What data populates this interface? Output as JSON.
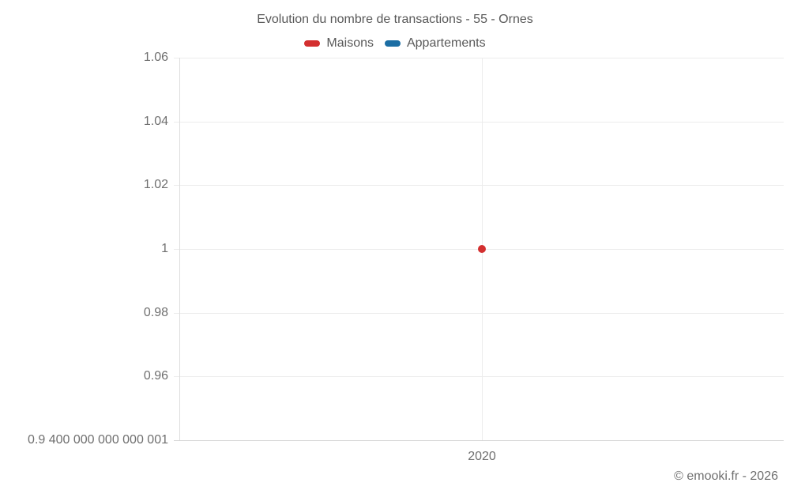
{
  "title": "Evolution du nombre de transactions - 55 - Ornes",
  "legend": {
    "items": [
      {
        "label": "Maisons",
        "color": "#d32f2f"
      },
      {
        "label": "Appartements",
        "color": "#1c6ea4"
      }
    ]
  },
  "attribution": "© emooki.fr - 2026",
  "colors": {
    "maisons": "#d32f2f",
    "appartements": "#1c6ea4",
    "gridline": "#ececec",
    "axis_edge": "#d4d4d4",
    "text": "#595959",
    "tick_text": "#6f6f6f"
  },
  "chart_data": {
    "type": "scatter",
    "title": "Evolution du nombre de transactions - 55 - Ornes",
    "categories": [
      "2020"
    ],
    "series": [
      {
        "name": "Maisons",
        "color": "#d32f2f",
        "values": [
          1
        ]
      },
      {
        "name": "Appartements",
        "color": "#1c6ea4",
        "values": [
          null
        ]
      }
    ],
    "xlabel": "",
    "ylabel": "",
    "ylim": [
      0.9400000000000001,
      1.06
    ],
    "y_ticks": [
      {
        "value": 1.06,
        "label": "1.06"
      },
      {
        "value": 1.04,
        "label": "1.04"
      },
      {
        "value": 1.02,
        "label": "1.02"
      },
      {
        "value": 1,
        "label": "1"
      },
      {
        "value": 0.98,
        "label": "0.98"
      },
      {
        "value": 0.96,
        "label": "0.96"
      },
      {
        "value": 0.9400000000000001,
        "label": "0.9 400 000 000 000 001"
      }
    ],
    "grid": true,
    "legend_position": "top"
  }
}
